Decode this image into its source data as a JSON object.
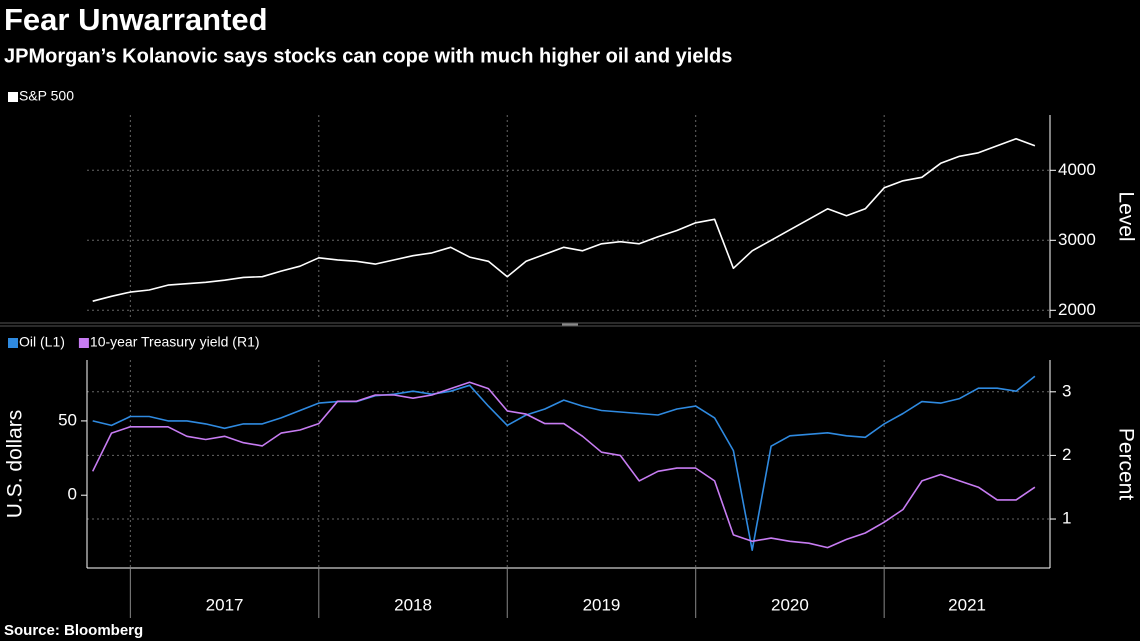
{
  "title": "Fear Unwarranted",
  "subtitle": "JPMorgan’s Kolanovic says stocks can cope with much higher oil and yields",
  "source": "Source: Bloomberg",
  "chart_data": [
    {
      "type": "line",
      "x": [
        2016.8,
        2016.9,
        2017.0,
        2017.1,
        2017.2,
        2017.3,
        2017.4,
        2017.5,
        2017.6,
        2017.7,
        2017.8,
        2017.9,
        2018.0,
        2018.1,
        2018.2,
        2018.3,
        2018.4,
        2018.5,
        2018.6,
        2018.7,
        2018.8,
        2018.9,
        2019.0,
        2019.1,
        2019.2,
        2019.3,
        2019.4,
        2019.5,
        2019.6,
        2019.7,
        2019.8,
        2019.9,
        2020.0,
        2020.1,
        2020.2,
        2020.3,
        2020.4,
        2020.5,
        2020.6,
        2020.7,
        2020.8,
        2020.9,
        2021.0,
        2021.1,
        2021.2,
        2021.3,
        2021.4,
        2021.5,
        2021.6,
        2021.7,
        2021.8
      ],
      "series": [
        {
          "name": "S&P 500",
          "color": "#ffffff",
          "values": [
            2130,
            2200,
            2260,
            2290,
            2360,
            2380,
            2400,
            2430,
            2470,
            2480,
            2560,
            2630,
            2750,
            2720,
            2700,
            2660,
            2720,
            2780,
            2820,
            2900,
            2760,
            2700,
            2480,
            2700,
            2800,
            2900,
            2850,
            2950,
            2980,
            2950,
            3050,
            3140,
            3250,
            3300,
            2600,
            2850,
            3000,
            3150,
            3300,
            3450,
            3350,
            3450,
            3750,
            3850,
            3900,
            4100,
            4200,
            4250,
            4350,
            4450,
            4350
          ]
        }
      ],
      "y_label": "Level",
      "xlim": [
        2016.77,
        2021.88
      ],
      "xticks": [
        2017,
        2018,
        2019,
        2020,
        2021
      ],
      "ylim": [
        1890,
        4790
      ],
      "yticks": [
        2000,
        3000,
        4000
      ],
      "grid": true
    },
    {
      "type": "line",
      "x": [
        2016.8,
        2016.9,
        2017.0,
        2017.1,
        2017.2,
        2017.3,
        2017.4,
        2017.5,
        2017.6,
        2017.7,
        2017.8,
        2017.9,
        2018.0,
        2018.1,
        2018.2,
        2018.3,
        2018.4,
        2018.5,
        2018.6,
        2018.7,
        2018.8,
        2018.9,
        2019.0,
        2019.1,
        2019.2,
        2019.3,
        2019.4,
        2019.5,
        2019.6,
        2019.7,
        2019.8,
        2019.9,
        2020.0,
        2020.1,
        2020.2,
        2020.3,
        2020.4,
        2020.5,
        2020.6,
        2020.7,
        2020.8,
        2020.9,
        2021.0,
        2021.1,
        2021.2,
        2021.3,
        2021.4,
        2021.5,
        2021.6,
        2021.7,
        2021.8
      ],
      "series": [
        {
          "name": "Oil (L1)",
          "color": "#2f8ae0",
          "values": [
            50,
            47,
            53,
            53,
            50,
            50,
            48,
            45,
            48,
            48,
            52,
            57,
            62,
            63,
            63,
            67,
            68,
            70,
            68,
            70,
            74,
            60,
            47,
            54,
            58,
            64,
            60,
            57,
            56,
            55,
            54,
            58,
            60,
            52,
            30,
            -37,
            33,
            40,
            41,
            42,
            40,
            39,
            48,
            55,
            63,
            62,
            65,
            72,
            72,
            70,
            80
          ]
        },
        {
          "name": "10-year Treasury yield (R1)",
          "color": "#c77cf2",
          "axis": "y2",
          "values": [
            1.75,
            2.35,
            2.45,
            2.45,
            2.45,
            2.3,
            2.25,
            2.3,
            2.2,
            2.15,
            2.35,
            2.4,
            2.5,
            2.85,
            2.85,
            2.95,
            2.95,
            2.9,
            2.95,
            3.05,
            3.15,
            3.05,
            2.7,
            2.65,
            2.5,
            2.5,
            2.3,
            2.05,
            2.0,
            1.6,
            1.75,
            1.8,
            1.8,
            1.6,
            0.75,
            0.65,
            0.7,
            0.65,
            0.62,
            0.55,
            0.68,
            0.78,
            0.95,
            1.15,
            1.6,
            1.7,
            1.6,
            1.5,
            1.3,
            1.3,
            1.5
          ]
        }
      ],
      "y_label": "U.S. dollars",
      "y2_label": "Percent",
      "xlim": [
        2016.77,
        2021.88
      ],
      "xticks": [
        2017,
        2018,
        2019,
        2020,
        2021
      ],
      "ylim": [
        -49,
        91
      ],
      "yticks": [
        0,
        50
      ],
      "y2lim": [
        0.23,
        3.5
      ],
      "y2ticks": [
        1,
        2,
        3
      ],
      "grid": true
    }
  ]
}
